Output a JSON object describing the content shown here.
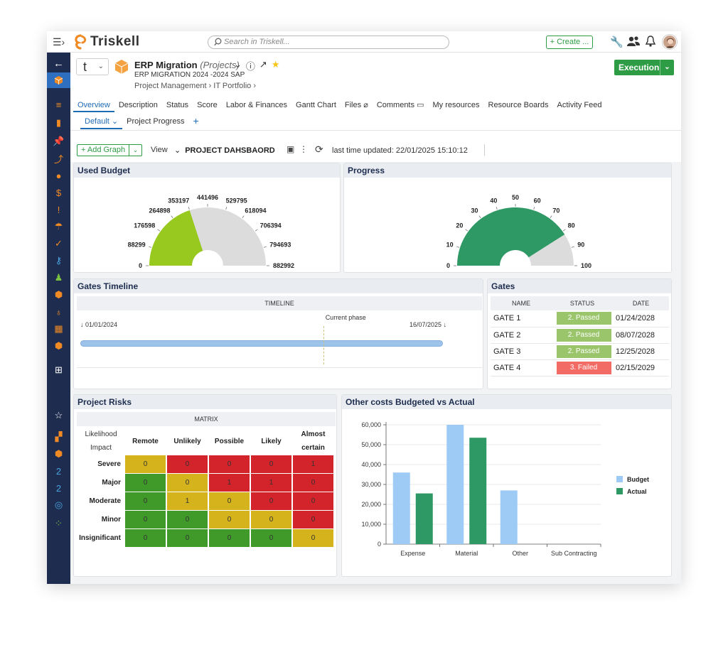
{
  "app": {
    "brand": "Triskell",
    "search_placeholder": "Search in Triskell...",
    "create_label": "+ Create ..."
  },
  "project": {
    "selector_letter": "t",
    "title": "ERP Migration",
    "type": "(Projects)",
    "subtitle": "ERP MIGRATION 2024 -2024 SAP",
    "breadcrumb": [
      "Project Management",
      "IT Portfolio"
    ],
    "status_button": "Execution"
  },
  "tabs": [
    "Overview",
    "Description",
    "Status",
    "Score",
    "Labor & Finances",
    "Gantt Chart",
    "Files",
    "Comments",
    "My resources",
    "Resource Boards",
    "Activity Feed"
  ],
  "subtabs": [
    "Default",
    "Project Progress"
  ],
  "toolbar": {
    "add_graph": "+ Add Graph",
    "view_label": "View",
    "dashboard_name": "PROJECT DAHSBAORD",
    "last_updated": "last time updated: 22/01/2025 15:10:12"
  },
  "used_budget": {
    "title": "Used Budget",
    "chart_data": {
      "type": "gauge",
      "min": 0,
      "max": 882992,
      "value": 353197,
      "ticks": [
        0,
        88299,
        176598,
        264898,
        353197,
        441496,
        529795,
        618094,
        706394,
        794693,
        882992
      ],
      "colors": {
        "fill": "#97c91e",
        "track": "#dcdcdc"
      }
    }
  },
  "progress": {
    "title": "Progress",
    "chart_data": {
      "type": "gauge",
      "min": 0,
      "max": 100,
      "value": 82,
      "ticks": [
        0,
        10,
        20,
        30,
        40,
        50,
        60,
        70,
        80,
        90,
        100
      ],
      "colors": {
        "fill": "#2e9965",
        "track": "#dcdcdc"
      }
    }
  },
  "gates_timeline": {
    "title": "Gates Timeline",
    "header": "TIMELINE",
    "start_label": "↓ 01/01/2024",
    "end_label": "16/07/2025 ↓",
    "current_label": "Current phase",
    "current_fraction": 0.67
  },
  "gates": {
    "title": "Gates",
    "columns": [
      "NAME",
      "STATUS",
      "DATE"
    ],
    "rows": [
      {
        "name": "GATE 1",
        "status": "2. Passed",
        "date": "01/24/2028",
        "color": "#9ac56a"
      },
      {
        "name": "GATE 2",
        "status": "2. Passed",
        "date": "08/07/2028",
        "color": "#9ac56a"
      },
      {
        "name": "GATE 3",
        "status": "2. Passed",
        "date": "12/25/2028",
        "color": "#9ac56a"
      },
      {
        "name": "GATE 4",
        "status": "3. Failed",
        "date": "02/15/2029",
        "color": "#f26b64"
      }
    ]
  },
  "project_risks": {
    "title": "Project Risks",
    "header": "MATRIX",
    "corner_top": "Likelihood",
    "corner_bottom": "Impact",
    "likelihood": [
      "Remote",
      "Unlikely",
      "Possible",
      "Likely",
      "Almost certain"
    ],
    "impact": [
      "Severe",
      "Major",
      "Moderate",
      "Minor",
      "Insignificant"
    ],
    "values": [
      [
        0,
        0,
        0,
        0,
        1
      ],
      [
        0,
        0,
        1,
        1,
        0
      ],
      [
        0,
        1,
        0,
        0,
        0
      ],
      [
        0,
        0,
        0,
        0,
        0
      ],
      [
        0,
        0,
        0,
        0,
        0
      ]
    ],
    "colors": [
      [
        "#d4b31c",
        "#d3242c",
        "#d3242c",
        "#d3242c",
        "#d3242c"
      ],
      [
        "#3f9a2a",
        "#d4b31c",
        "#d3242c",
        "#d3242c",
        "#d3242c"
      ],
      [
        "#3f9a2a",
        "#d4b31c",
        "#d4b31c",
        "#d3242c",
        "#d3242c"
      ],
      [
        "#3f9a2a",
        "#3f9a2a",
        "#d4b31c",
        "#d4b31c",
        "#d3242c"
      ],
      [
        "#3f9a2a",
        "#3f9a2a",
        "#3f9a2a",
        "#3f9a2a",
        "#d4b31c"
      ]
    ]
  },
  "other_costs": {
    "title": "Other costs Budgeted vs Actual",
    "chart_data": {
      "type": "bar",
      "categories": [
        "Expense",
        "Material",
        "Other",
        "Sub Contracting"
      ],
      "series": [
        {
          "name": "Budget",
          "values": [
            36000,
            60000,
            27000,
            0
          ],
          "color": "#9ecbf5"
        },
        {
          "name": "Actual",
          "values": [
            25500,
            53500,
            0,
            0
          ],
          "color": "#2e9965"
        }
      ],
      "ylim": [
        0,
        60000
      ],
      "yticks": [
        "0",
        "10,000",
        "20,000",
        "30,000",
        "40,000",
        "50,000",
        "60,000"
      ],
      "legend": "right"
    }
  }
}
